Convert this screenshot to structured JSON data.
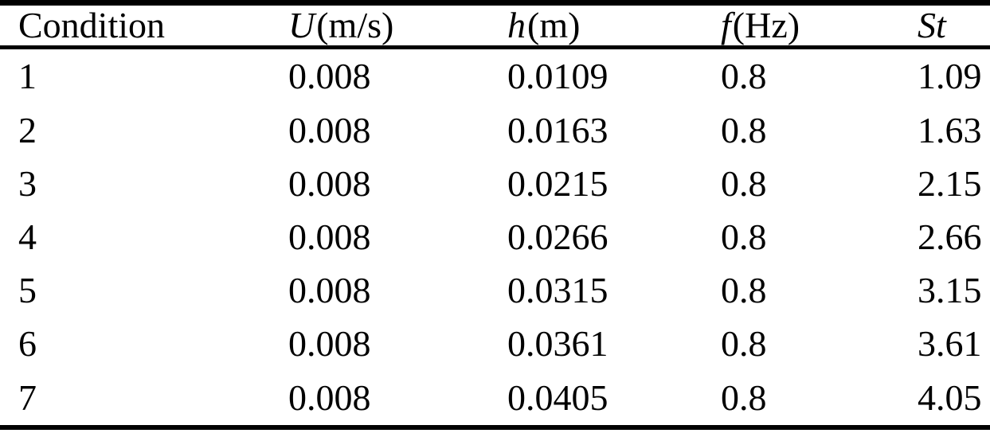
{
  "page": {
    "background_color": "#ffffff",
    "text_color": "#000000",
    "rule_color": "#000000"
  },
  "table": {
    "columns": [
      {
        "key": "condition",
        "label": "Condition",
        "unit": "",
        "italic": false
      },
      {
        "key": "velocity",
        "label": "U",
        "unit": "(m/s)",
        "italic": true
      },
      {
        "key": "depth",
        "label": "h",
        "unit": "(m)",
        "italic": true
      },
      {
        "key": "frequency",
        "label": "f",
        "unit": "(Hz)",
        "italic": true
      },
      {
        "key": "strouhal",
        "label": "St",
        "unit": "",
        "italic": true
      }
    ],
    "rows": [
      [
        "1",
        "0.008",
        "0.0109",
        "0.8",
        "1.09"
      ],
      [
        "2",
        "0.008",
        "0.0163",
        "0.8",
        "1.63"
      ],
      [
        "3",
        "0.008",
        "0.0215",
        "0.8",
        "2.15"
      ],
      [
        "4",
        "0.008",
        "0.0266",
        "0.8",
        "2.66"
      ],
      [
        "5",
        "0.008",
        "0.0315",
        "0.8",
        "3.15"
      ],
      [
        "6",
        "0.008",
        "0.0361",
        "0.8",
        "3.61"
      ],
      [
        "7",
        "0.008",
        "0.0405",
        "0.8",
        "4.05"
      ]
    ]
  },
  "chart_data": {
    "type": "table",
    "columns": [
      "Condition",
      "U(m/s)",
      "h(m)",
      "f(Hz)",
      "St"
    ],
    "rows": [
      [
        1,
        0.008,
        0.0109,
        0.8,
        1.09
      ],
      [
        2,
        0.008,
        0.0163,
        0.8,
        1.63
      ],
      [
        3,
        0.008,
        0.0215,
        0.8,
        2.15
      ],
      [
        4,
        0.008,
        0.0266,
        0.8,
        2.66
      ],
      [
        5,
        0.008,
        0.0315,
        0.8,
        3.15
      ],
      [
        6,
        0.008,
        0.0361,
        0.8,
        3.61
      ],
      [
        7,
        0.008,
        0.0405,
        0.8,
        4.05
      ]
    ]
  }
}
